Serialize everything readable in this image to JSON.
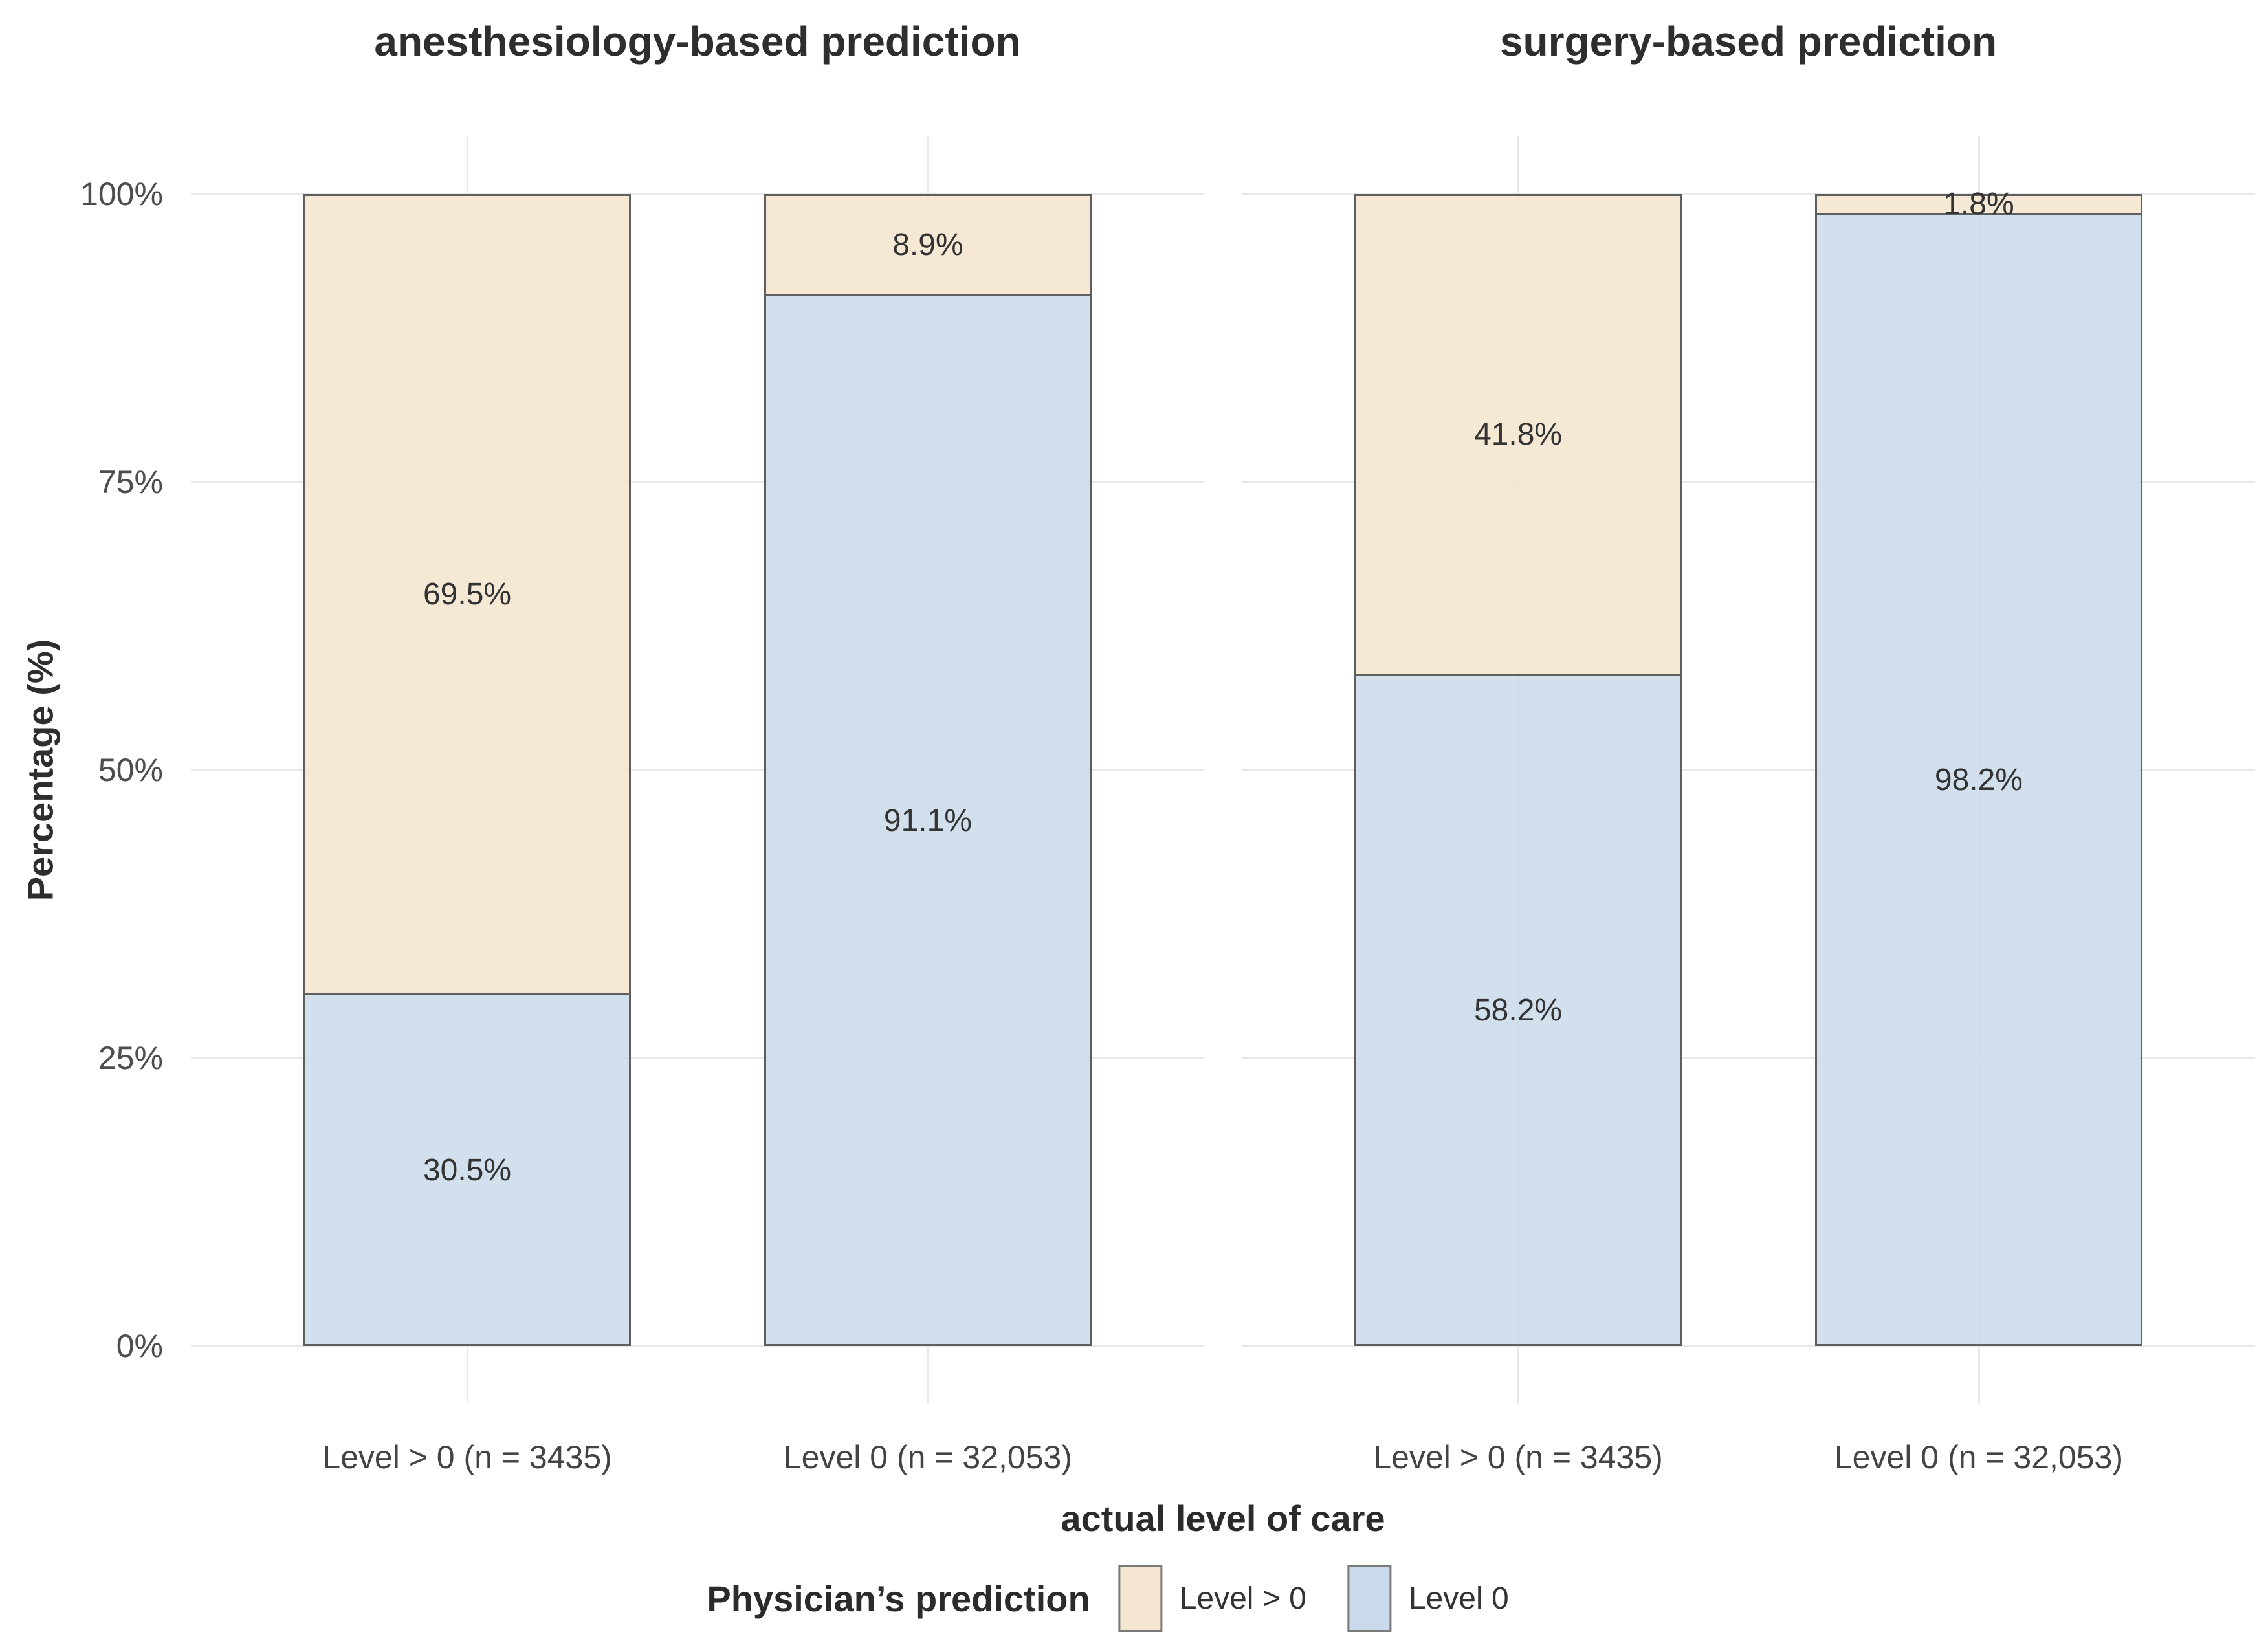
{
  "figure": {
    "background": "#ffffff",
    "y_axis": {
      "title": "Percentage (%)",
      "ticks": [
        {
          "label": "0%",
          "value": 0
        },
        {
          "label": "25%",
          "value": 25
        },
        {
          "label": "50%",
          "value": 50
        },
        {
          "label": "75%",
          "value": 75
        },
        {
          "label": "100%",
          "value": 100
        }
      ]
    },
    "x_axis": {
      "title": "actual level of care"
    },
    "colors": {
      "grid": "#e8e8e8",
      "bar_border": "#5f5f5f",
      "title_text": "#2e2e2e",
      "tick_text": "#4d4d4d",
      "bar_label_text": "#333333",
      "level_gt0_fill": "#f4e6d0",
      "level_0_fill": "#cbdaea",
      "legend_key_border": "#7a7a7a"
    }
  },
  "chart_data": {
    "type": "bar",
    "stacked": true,
    "orientation": "vertical",
    "unit": "percent",
    "ylim": [
      0,
      100
    ],
    "grid": "major-horizontal-and-category-vertical",
    "legend_position": "bottom",
    "xlabel": "actual level of care",
    "ylabel": "Percentage (%)",
    "y_tick_labels": [
      "0%",
      "25%",
      "50%",
      "75%",
      "100%"
    ],
    "facets": [
      {
        "title": "anesthesiology-based prediction",
        "categories": [
          "Level > 0 (n = 3435)",
          "Level 0 (n = 32,053)"
        ],
        "series": [
          {
            "name": "Level 0",
            "values": [
              30.5,
              91.1
            ]
          },
          {
            "name": "Level > 0",
            "values": [
              69.5,
              8.9
            ]
          }
        ]
      },
      {
        "title": "surgery-based prediction",
        "categories": [
          "Level > 0 (n = 3435)",
          "Level 0 (n = 32,053)"
        ],
        "series": [
          {
            "name": "Level 0",
            "values": [
              58.2,
              98.2
            ]
          },
          {
            "name": "Level > 0",
            "values": [
              41.8,
              1.8
            ]
          }
        ]
      }
    ],
    "series_colors": {
      "Level 0": "#cbdaea",
      "Level > 0": "#f4e6d0"
    },
    "legend": {
      "title": "Physician’s prediction",
      "entries": [
        {
          "label": "Level > 0",
          "color": "#f4e6d0"
        },
        {
          "label": "Level 0",
          "color": "#cbdaea"
        }
      ]
    }
  }
}
